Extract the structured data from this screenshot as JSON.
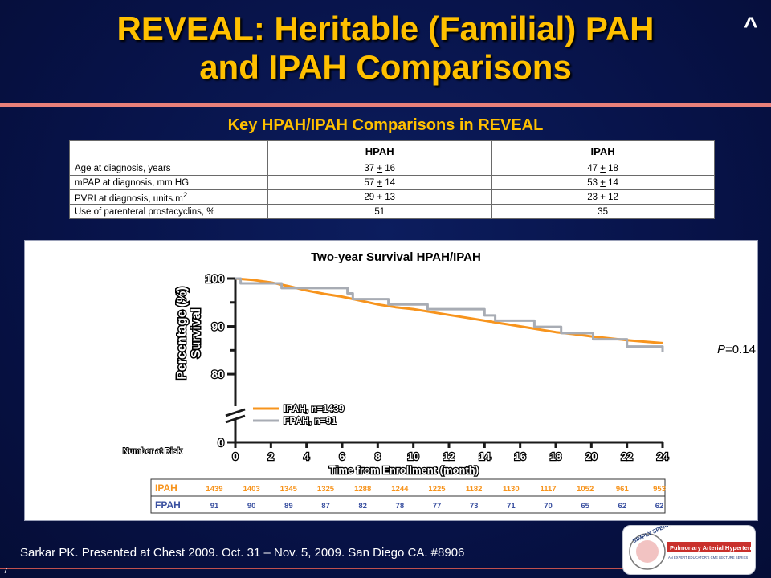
{
  "slide": {
    "title_line1": "REVEAL: Heritable (Familial) PAH",
    "title_line2": "and IPAH Comparisons",
    "caret": "^",
    "subtitle": "Key HPAH/IPAH Comparisons in REVEAL",
    "citation": "Sarkar PK. Presented at Chest 2009. Oct. 31 – Nov. 5, 2009. San Diego CA. #8906",
    "slide_number": "7",
    "logo_text_main": "SIMPLY SPEAKING",
    "logo_text_title": "Pulmonary Arterial Hypertension",
    "logo_text_sub": "AN EXPERT EDUCATOR'S CME LECTURE SERIES"
  },
  "comparison_table": {
    "headers": [
      "",
      "HPAH",
      "IPAH"
    ],
    "rows": [
      {
        "label": "Age at diagnosis, years",
        "hpah": [
          "37",
          "+",
          "16"
        ],
        "ipah": [
          "47",
          "+",
          "18"
        ]
      },
      {
        "label": "mPAP at diagnosis, mm HG",
        "hpah": [
          "57",
          "+",
          "14"
        ],
        "ipah": [
          "53",
          "+",
          "14"
        ]
      },
      {
        "label": "PVRI at diagnosis, units.m",
        "label_sup": "2",
        "hpah": [
          "29",
          "+",
          "13"
        ],
        "ipah": [
          "23",
          "+",
          "12"
        ]
      },
      {
        "label": "Use of parenteral prostacyclins, %",
        "hpah": [
          "51"
        ],
        "ipah": [
          "35"
        ]
      }
    ]
  },
  "chart_data": {
    "type": "line",
    "title": "Two-year Survival HPAH/IPAH",
    "xlabel": "Time from Enrollment (month)",
    "ylabel_line1": "Percentage (%)",
    "ylabel_line2": "Survival",
    "x_ticks": [
      "0",
      "2",
      "4",
      "6",
      "8",
      "10",
      "12",
      "14",
      "16",
      "18",
      "20",
      "22",
      "24"
    ],
    "y_ticks": [
      "0",
      "80",
      "90",
      "100"
    ],
    "xlim": [
      0,
      24
    ],
    "ylim": [
      78,
      100
    ],
    "y_axis_break": true,
    "p_value_label": "P",
    "p_value": "=0.14",
    "series": [
      {
        "name": "IPAH, n=1439",
        "color": "#f7941d",
        "step": false,
        "x": [
          0,
          1,
          2,
          3,
          4,
          5,
          6,
          7,
          8,
          9,
          10,
          11,
          12,
          13,
          14,
          15,
          16,
          17,
          18,
          19,
          20,
          21,
          22,
          23,
          24
        ],
        "y": [
          100,
          99.7,
          99.2,
          98.4,
          97.5,
          96.8,
          96.2,
          95.4,
          94.6,
          94.0,
          93.6,
          93.0,
          92.4,
          91.8,
          91.2,
          90.6,
          90.0,
          89.4,
          88.8,
          88.4,
          87.9,
          87.5,
          87.1,
          86.8,
          86.5
        ]
      },
      {
        "name": "FPAH, n=91",
        "color": "#a8acb4",
        "step": true,
        "x": [
          0,
          0.3,
          2.6,
          6.3,
          6.6,
          8.6,
          10.8,
          12.0,
          14.0,
          14.6,
          16.8,
          18.3,
          20.1,
          22.0,
          24
        ],
        "y": [
          100,
          99.0,
          98.0,
          96.9,
          95.7,
          94.6,
          93.6,
          93.6,
          92.3,
          91.2,
          89.9,
          88.6,
          87.3,
          85.8,
          84.7
        ]
      }
    ],
    "risk_table": {
      "caption": "Number at Risk",
      "rows": [
        {
          "label": "IPAH",
          "values": [
            1439,
            1403,
            1345,
            1325,
            1288,
            1244,
            1225,
            1182,
            1130,
            1117,
            1052,
            961,
            953
          ]
        },
        {
          "label": "FPAH",
          "values": [
            91,
            90,
            89,
            87,
            82,
            78,
            77,
            73,
            71,
            70,
            65,
            62,
            62
          ]
        }
      ]
    }
  }
}
